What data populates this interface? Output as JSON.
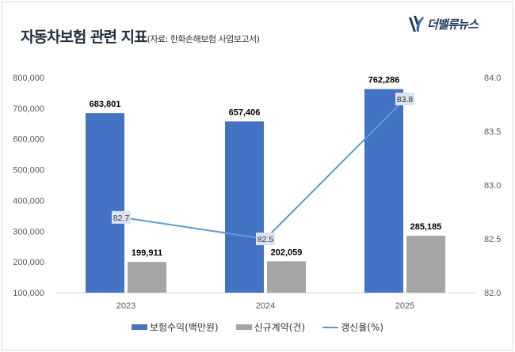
{
  "header": {
    "title": "자동차보험 관련 지표",
    "subtitle": "(자료: 한화손해보험 사업보고서)",
    "logo_text": "더밸류뉴스"
  },
  "chart_data": {
    "type": "bar",
    "categories": [
      "2023",
      "2024",
      "2025"
    ],
    "series": [
      {
        "name": "보험수익(백만원)",
        "type": "bar",
        "axis": "left",
        "color": "#4472c4",
        "values": [
          683801,
          657406,
          762286
        ],
        "labels": [
          "683,801",
          "657,406",
          "762,286"
        ]
      },
      {
        "name": "신규계약(건)",
        "type": "bar",
        "axis": "left",
        "color": "#a5a5a5",
        "values": [
          199911,
          202059,
          285185
        ],
        "labels": [
          "199,911",
          "202,059",
          "285,185"
        ]
      },
      {
        "name": "갱신율(%)",
        "type": "line",
        "axis": "right",
        "color": "#5b9bd5",
        "values": [
          82.7,
          82.5,
          83.8
        ],
        "labels": [
          "82.7",
          "82.5",
          "83.8"
        ]
      }
    ],
    "y_left": {
      "range": [
        100000,
        800000
      ],
      "ticks": [
        "100,000",
        "200,000",
        "300,000",
        "400,000",
        "500,000",
        "600,000",
        "700,000",
        "800,000"
      ]
    },
    "y_right": {
      "range": [
        82.0,
        84.0
      ],
      "ticks": [
        "82.0",
        "82.5",
        "83.0",
        "83.5",
        "84.0"
      ]
    },
    "grid": false,
    "legend": "bottom"
  }
}
